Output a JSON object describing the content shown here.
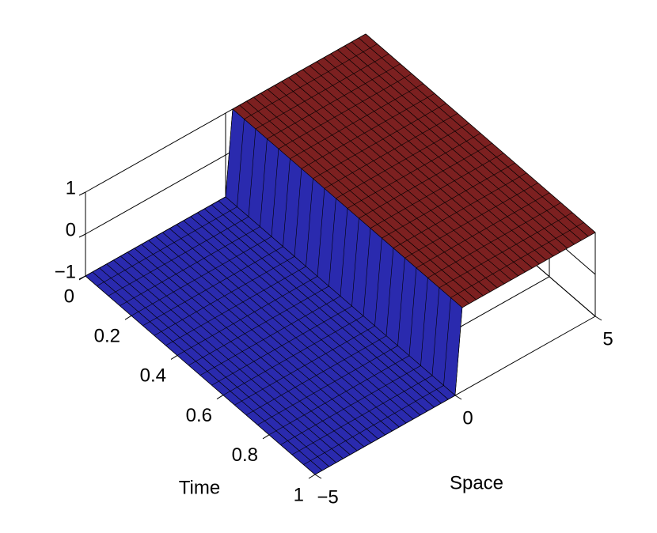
{
  "chart_data": {
    "type": "surface",
    "xlabel": "Space",
    "ylabel": "Time",
    "x": [
      -5,
      -4.75,
      -4.5,
      -4.25,
      -4,
      -3.75,
      -3.5,
      -3.25,
      -3,
      -2.75,
      -2.5,
      -2.25,
      -2,
      -1.75,
      -1.5,
      -1.25,
      -1,
      -0.75,
      -0.5,
      -0.25,
      0,
      0.25,
      0.5,
      0.75,
      1,
      1.25,
      1.5,
      1.75,
      2,
      2.25,
      2.5,
      2.75,
      3,
      3.25,
      3.5,
      3.75,
      4,
      4.25,
      4.5,
      4.75,
      5
    ],
    "z": [
      -1,
      -1,
      -1,
      -1,
      -1,
      -1,
      -1,
      -1,
      -1,
      -1,
      -1,
      -1,
      -1,
      -1,
      -1,
      -1,
      -1,
      -1,
      -1,
      -1,
      -1,
      1,
      1,
      1,
      1,
      1,
      1,
      1,
      1,
      1,
      1,
      1,
      1,
      1,
      1,
      1,
      1,
      1,
      1,
      1,
      1
    ],
    "t": [
      0,
      0.05,
      0.1,
      0.15,
      0.2,
      0.25,
      0.3,
      0.35,
      0.4,
      0.45,
      0.5,
      0.55,
      0.6,
      0.65,
      0.7,
      0.75,
      0.8,
      0.85,
      0.9,
      0.95,
      1
    ],
    "xlim": [
      -5,
      5
    ],
    "xticks": [
      {
        "value": -5,
        "label": "−5"
      },
      0,
      5
    ],
    "ylim": [
      0,
      1
    ],
    "yticks": [
      0,
      0.2,
      0.4,
      0.6,
      0.8,
      1
    ],
    "zlim": [
      -1,
      1
    ],
    "zticks": [
      {
        "value": -1,
        "label": "−1"
      },
      0,
      1
    ],
    "colormap": [
      "#2a2aae",
      "#7c2020"
    ],
    "grid": true
  }
}
